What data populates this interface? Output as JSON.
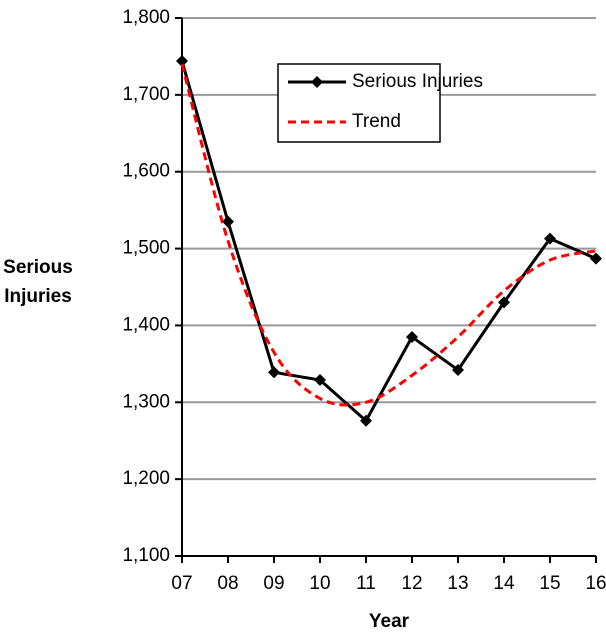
{
  "chart_data": {
    "type": "line",
    "x_label": "Year",
    "y_label": "Serious Injuries",
    "categories": [
      "07",
      "08",
      "09",
      "10",
      "11",
      "12",
      "13",
      "14",
      "15",
      "16"
    ],
    "series": [
      {
        "name": "Serious Injuries",
        "color": "#000000",
        "style": "solid",
        "marker": "diamond",
        "values": [
          1744,
          1535,
          1339,
          1329,
          1276,
          1385,
          1342,
          1430,
          1513,
          1487
        ]
      },
      {
        "name": "Trend",
        "color": "#ff0000",
        "style": "dashed",
        "smooth": true,
        "values": [
          1740,
          1510,
          1365,
          1305,
          1300,
          1335,
          1385,
          1445,
          1485,
          1497
        ]
      }
    ],
    "ylim": [
      1100,
      1800
    ],
    "yticks": [
      {
        "value": 1100,
        "label": "1,100"
      },
      {
        "value": 1200,
        "label": "1,200"
      },
      {
        "value": 1300,
        "label": "1,300"
      },
      {
        "value": 1400,
        "label": "1,400"
      },
      {
        "value": 1500,
        "label": "1,500"
      },
      {
        "value": 1600,
        "label": "1,600"
      },
      {
        "value": 1700,
        "label": "1,700"
      },
      {
        "value": 1800,
        "label": "1,800"
      }
    ],
    "grid": true,
    "legend": "top-right"
  }
}
